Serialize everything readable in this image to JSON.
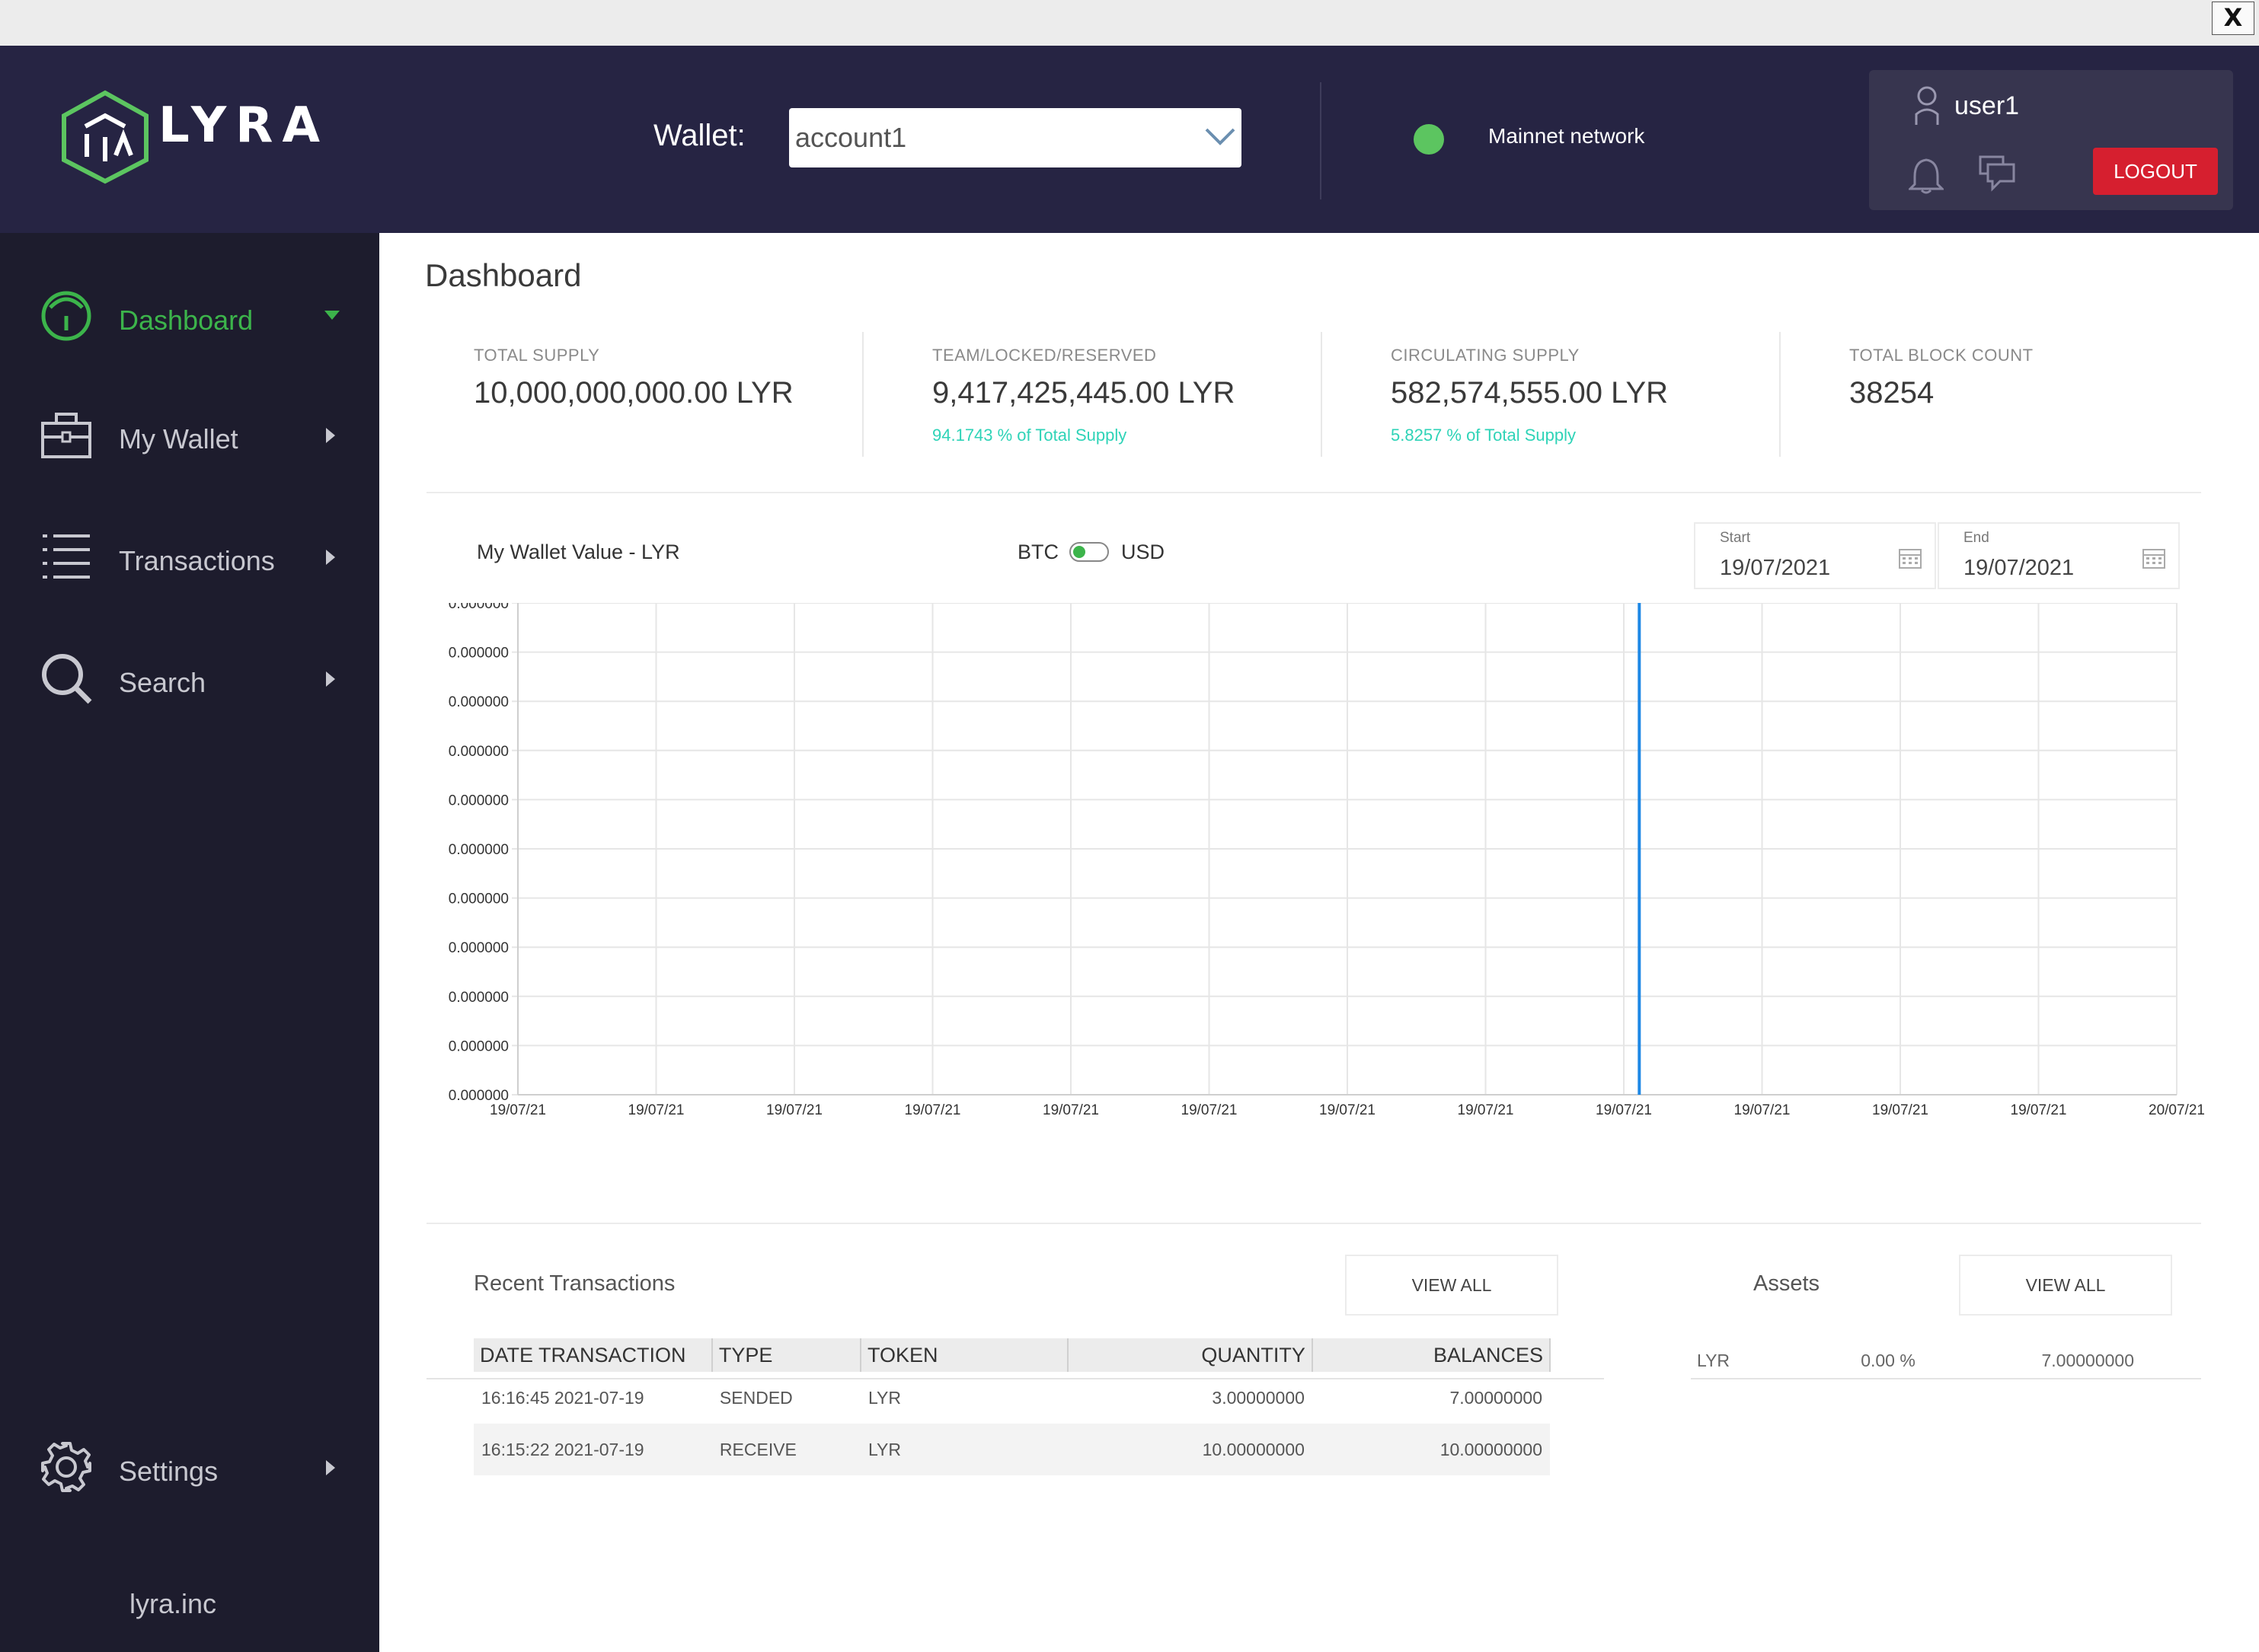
{
  "window": {
    "close_label": "X"
  },
  "header": {
    "logo_text": "LYRA",
    "wallet_label": "Wallet:",
    "wallet_selected": "account1",
    "network_label": "Mainnet network",
    "network_status_color": "#5cc560",
    "user_name": "user1",
    "logout_label": "LOGOUT"
  },
  "sidebar": {
    "items": [
      {
        "label": "Dashboard",
        "icon": "dashboard-gauge-icon",
        "active": true
      },
      {
        "label": "My Wallet",
        "icon": "briefcase-icon"
      },
      {
        "label": "Transactions",
        "icon": "list-icon"
      },
      {
        "label": "Search",
        "icon": "search-icon"
      },
      {
        "label": "Settings",
        "icon": "gear-icon"
      }
    ],
    "footer": "lyra.inc"
  },
  "colors": {
    "accent": "#3cb44b",
    "teal": "#2ed3b7",
    "logout": "#d61f2f",
    "header_bg": "#262443",
    "sidebar_bg": "#1d1c2d",
    "chart_line": "#1e88e5"
  },
  "main": {
    "title": "Dashboard",
    "stats": [
      {
        "label": "TOTAL SUPPLY",
        "value": "10,000,000,000.00 LYR",
        "sub": ""
      },
      {
        "label": "TEAM/LOCKED/RESERVED",
        "value": "9,417,425,445.00 LYR",
        "sub": "94.1743 % of Total Supply"
      },
      {
        "label": "CIRCULATING SUPPLY",
        "value": "582,574,555.00 LYR",
        "sub": "5.8257 % of Total Supply"
      },
      {
        "label": "TOTAL BLOCK COUNT",
        "value": "38254",
        "sub": ""
      }
    ],
    "chart_title": "My Wallet Value - LYR",
    "toggle": {
      "left": "BTC",
      "right": "USD",
      "selected": "BTC"
    },
    "start_date": {
      "label": "Start",
      "value": "19/07/2021"
    },
    "end_date": {
      "label": "End",
      "value": "19/07/2021"
    },
    "recent_tx_title": "Recent Transactions",
    "view_all_label": "VIEW ALL",
    "assets_title": "Assets"
  },
  "chart_data": {
    "type": "line",
    "title": "My Wallet Value - LYR",
    "xlabel": "",
    "ylabel": "",
    "x_tick_labels": [
      "19/07/21",
      "19/07/21",
      "19/07/21",
      "19/07/21",
      "19/07/21",
      "19/07/21",
      "19/07/21",
      "19/07/21",
      "19/07/21",
      "19/07/21",
      "19/07/21",
      "19/07/21",
      "20/07/21"
    ],
    "y_tick_labels": [
      "0.000000",
      "0.000000",
      "0.000000",
      "0.000000",
      "0.000000",
      "0.000000",
      "0.000000",
      "0.000000",
      "0.000000",
      "0.000000",
      "0.000000"
    ],
    "series": [
      {
        "x_fraction": 0.676,
        "description": "vertical line"
      }
    ],
    "grid": true
  },
  "transactions": {
    "columns": [
      "DATE TRANSACTION",
      "TYPE",
      "TOKEN",
      "QUANTITY",
      "BALANCES"
    ],
    "rows": [
      [
        "16:16:45 2021-07-19",
        "SENDED",
        "LYR",
        "3.00000000",
        "7.00000000"
      ],
      [
        "16:15:22 2021-07-19",
        "RECEIVE",
        "LYR",
        "10.00000000",
        "10.00000000"
      ]
    ]
  },
  "assets": {
    "rows": [
      [
        "LYR",
        "0.00 %",
        "7.00000000"
      ]
    ]
  }
}
